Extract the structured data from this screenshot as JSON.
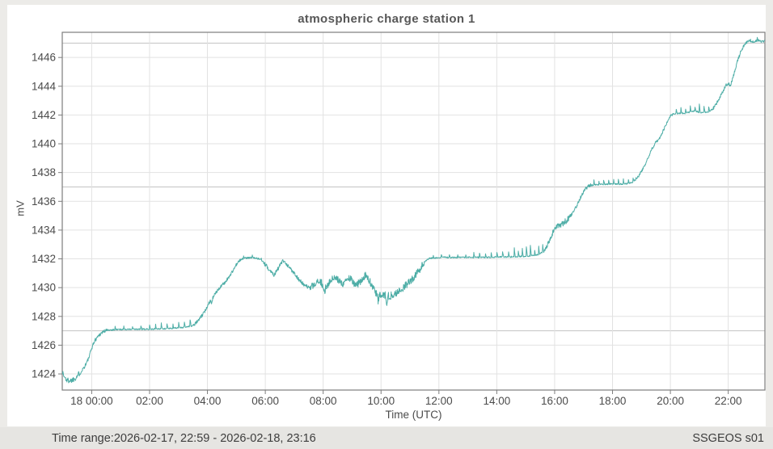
{
  "header": {
    "title": "atmospheric charge station 1"
  },
  "footer": {
    "time_range": "Time range:2026-02-17, 22:59 - 2026-02-18, 23:16",
    "station": "SSGEOS s01"
  },
  "colors": {
    "line": "#4dada6",
    "grid": "#e2e2e2",
    "reference_line": "#c3c3c3",
    "border": "#7d7d7d",
    "tick_text": "#4b4b4b",
    "title_text": "#575757",
    "page_bg": "#ecebe8",
    "card_bg": "#ffffff",
    "footer_bg": "#e6e5e2"
  },
  "chart_data": {
    "type": "line",
    "title": "atmospheric charge station 1",
    "xlabel": "Time (UTC)",
    "ylabel": "mV",
    "legend": "none",
    "grid": "on",
    "time_start_label": "2026-02-17, 22:59",
    "time_end_label": "2026-02-18, 23:16",
    "x_tick_labels": [
      "18 00:00",
      "02:00",
      "04:00",
      "06:00",
      "08:00",
      "10:00",
      "12:00",
      "14:00",
      "16:00",
      "18:00",
      "20:00",
      "22:00"
    ],
    "x_tick_hours": [
      0,
      2,
      4,
      6,
      8,
      10,
      12,
      14,
      16,
      18,
      20,
      22
    ],
    "y_ticks": [
      1424,
      1426,
      1428,
      1430,
      1432,
      1434,
      1436,
      1438,
      1440,
      1442,
      1444,
      1446
    ],
    "reference_lines": [
      1427,
      1437,
      1447
    ],
    "xlim_hours": [
      -1.017,
      23.267
    ],
    "ylim": [
      1422.88,
      1447.75
    ],
    "series": [
      {
        "name": "atmospheric charge (mV)",
        "color": "#4dada6",
        "keypoints": [
          [
            -1.02,
            1424.2
          ],
          [
            -0.95,
            1423.8
          ],
          [
            -0.85,
            1423.55
          ],
          [
            -0.7,
            1423.55
          ],
          [
            -0.55,
            1423.75
          ],
          [
            -0.4,
            1424.1
          ],
          [
            -0.25,
            1424.5
          ],
          [
            -0.1,
            1425.1
          ],
          [
            0.0,
            1425.8
          ],
          [
            0.1,
            1426.3
          ],
          [
            0.25,
            1426.7
          ],
          [
            0.4,
            1426.95
          ],
          [
            0.55,
            1427.05
          ],
          [
            1.0,
            1427.1
          ],
          [
            1.6,
            1427.1
          ],
          [
            2.2,
            1427.12
          ],
          [
            2.8,
            1427.18
          ],
          [
            3.2,
            1427.25
          ],
          [
            3.5,
            1427.35
          ],
          [
            3.7,
            1427.75
          ],
          [
            3.9,
            1428.3
          ],
          [
            4.05,
            1428.95
          ],
          [
            4.2,
            1429.35
          ],
          [
            4.4,
            1429.95
          ],
          [
            4.6,
            1430.35
          ],
          [
            4.8,
            1430.9
          ],
          [
            5.0,
            1431.6
          ],
          [
            5.15,
            1431.95
          ],
          [
            5.3,
            1432.05
          ],
          [
            5.6,
            1432.1
          ],
          [
            5.85,
            1431.95
          ],
          [
            6.1,
            1431.35
          ],
          [
            6.3,
            1430.9
          ],
          [
            6.45,
            1431.35
          ],
          [
            6.6,
            1431.85
          ],
          [
            6.75,
            1431.55
          ],
          [
            6.95,
            1431.15
          ],
          [
            7.15,
            1430.6
          ],
          [
            7.35,
            1430.15
          ],
          [
            7.55,
            1429.95
          ],
          [
            7.7,
            1430.2
          ],
          [
            7.9,
            1430.45
          ],
          [
            8.05,
            1430.0
          ],
          [
            8.2,
            1430.3
          ],
          [
            8.35,
            1430.65
          ],
          [
            8.5,
            1430.55
          ],
          [
            8.65,
            1430.25
          ],
          [
            8.8,
            1430.55
          ],
          [
            8.95,
            1430.65
          ],
          [
            9.1,
            1430.1
          ],
          [
            9.25,
            1430.35
          ],
          [
            9.45,
            1430.85
          ],
          [
            9.6,
            1430.5
          ],
          [
            9.75,
            1429.9
          ],
          [
            9.9,
            1429.35
          ],
          [
            10.05,
            1429.6
          ],
          [
            10.2,
            1429.4
          ],
          [
            10.35,
            1429.45
          ],
          [
            10.5,
            1429.6
          ],
          [
            10.65,
            1429.75
          ],
          [
            10.8,
            1430.05
          ],
          [
            10.95,
            1430.35
          ],
          [
            11.1,
            1430.65
          ],
          [
            11.25,
            1431.0
          ],
          [
            11.4,
            1431.45
          ],
          [
            11.55,
            1431.9
          ],
          [
            11.7,
            1432.05
          ],
          [
            12.2,
            1432.1
          ],
          [
            13.0,
            1432.1
          ],
          [
            13.8,
            1432.12
          ],
          [
            14.6,
            1432.15
          ],
          [
            15.1,
            1432.2
          ],
          [
            15.45,
            1432.3
          ],
          [
            15.65,
            1432.6
          ],
          [
            15.85,
            1433.4
          ],
          [
            16.0,
            1434.15
          ],
          [
            16.15,
            1434.35
          ],
          [
            16.3,
            1434.5
          ],
          [
            16.45,
            1434.75
          ],
          [
            16.6,
            1435.15
          ],
          [
            16.75,
            1435.65
          ],
          [
            16.9,
            1436.3
          ],
          [
            17.05,
            1436.85
          ],
          [
            17.2,
            1437.1
          ],
          [
            17.4,
            1437.15
          ],
          [
            17.9,
            1437.2
          ],
          [
            18.4,
            1437.2
          ],
          [
            18.7,
            1437.3
          ],
          [
            18.9,
            1437.75
          ],
          [
            19.05,
            1438.25
          ],
          [
            19.2,
            1438.9
          ],
          [
            19.35,
            1439.6
          ],
          [
            19.5,
            1440.15
          ],
          [
            19.62,
            1440.35
          ],
          [
            19.75,
            1440.9
          ],
          [
            19.88,
            1441.5
          ],
          [
            20.0,
            1441.95
          ],
          [
            20.15,
            1442.1
          ],
          [
            20.5,
            1442.12
          ],
          [
            20.85,
            1442.3
          ],
          [
            21.05,
            1442.15
          ],
          [
            21.3,
            1442.2
          ],
          [
            21.5,
            1442.5
          ],
          [
            21.65,
            1443.0
          ],
          [
            21.8,
            1443.6
          ],
          [
            21.92,
            1444.1
          ],
          [
            22.0,
            1444.2
          ],
          [
            22.08,
            1444.05
          ],
          [
            22.2,
            1444.85
          ],
          [
            22.32,
            1445.75
          ],
          [
            22.45,
            1446.5
          ],
          [
            22.58,
            1446.95
          ],
          [
            22.7,
            1447.15
          ],
          [
            22.9,
            1447.1
          ],
          [
            23.05,
            1447.2
          ],
          [
            23.15,
            1447.1
          ],
          [
            23.27,
            1447.15
          ]
        ],
        "noise_zones": [
          [
            -1.02,
            -0.35,
            0.2
          ],
          [
            -0.35,
            0.55,
            0.13
          ],
          [
            0.55,
            3.5,
            0.05
          ],
          [
            3.5,
            5.15,
            0.11
          ],
          [
            5.15,
            5.95,
            0.06
          ],
          [
            5.95,
            7.6,
            0.14
          ],
          [
            7.6,
            11.5,
            0.26
          ],
          [
            11.5,
            15.6,
            0.05
          ],
          [
            15.6,
            16.1,
            0.16
          ],
          [
            16.1,
            16.5,
            0.22
          ],
          [
            16.5,
            17.25,
            0.12
          ],
          [
            17.25,
            18.75,
            0.05
          ],
          [
            18.75,
            20.1,
            0.1
          ],
          [
            20.1,
            21.45,
            0.05
          ],
          [
            21.45,
            22.65,
            0.11
          ],
          [
            22.65,
            23.27,
            0.08
          ]
        ],
        "spike_zones": [
          [
            0.8,
            2.2,
            0.3,
            0.35
          ],
          [
            2.2,
            3.5,
            0.2,
            0.5
          ],
          [
            5.25,
            5.9,
            0.3,
            0.2
          ],
          [
            11.8,
            13.2,
            0.28,
            0.3
          ],
          [
            13.2,
            14.6,
            0.2,
            0.45
          ],
          [
            14.6,
            15.65,
            0.14,
            0.85
          ],
          [
            17.35,
            18.8,
            0.17,
            0.5
          ],
          [
            20.2,
            21.45,
            0.16,
            0.6
          ],
          [
            22.75,
            23.2,
            0.25,
            0.25
          ]
        ],
        "down_spikes": [
          [
            4.15,
            0.35
          ],
          [
            8.05,
            0.55
          ],
          [
            9.9,
            0.35
          ],
          [
            10.2,
            0.5
          ]
        ]
      }
    ]
  }
}
